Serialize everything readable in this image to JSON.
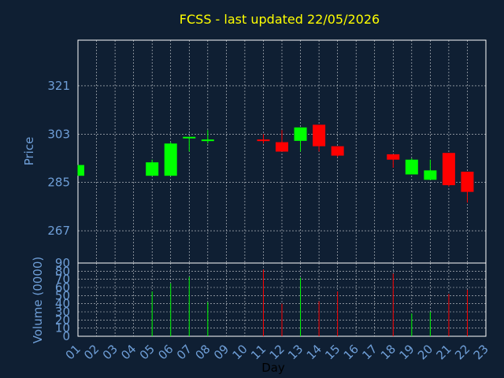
{
  "chart_data": {
    "type": "candlestick",
    "title": "FCSS - last updated 22/05/2026",
    "xlabel": "Day",
    "ylabel_price": "Price",
    "ylabel_volume": "Volume (0000)",
    "grid": true,
    "x_ticks": [
      "01",
      "02",
      "03",
      "04",
      "05",
      "06",
      "07",
      "08",
      "09",
      "10",
      "11",
      "12",
      "13",
      "14",
      "15",
      "16",
      "17",
      "18",
      "19",
      "20",
      "21",
      "22",
      "23"
    ],
    "price_ticks": [
      "267",
      "285",
      "303",
      "321"
    ],
    "volume_ticks": [
      "0",
      "10",
      "20",
      "30",
      "40",
      "50",
      "60",
      "70",
      "80",
      "90"
    ],
    "price_ylim": [
      255,
      338
    ],
    "volume_ylim": [
      0,
      90
    ],
    "colors": {
      "background": "#0f1f33",
      "title": "#ffff00",
      "axis_text": "#6f9fd8",
      "grid": "#ffffff",
      "up": "#00ff00",
      "down": "#ff0000"
    },
    "candles": [
      {
        "day": 1,
        "open": 287.5,
        "high": 291.5,
        "low": 287.5,
        "close": 291.5,
        "volume": 0
      },
      {
        "day": 5,
        "open": 287.5,
        "high": 293.5,
        "low": 287.5,
        "close": 292.5,
        "volume": 55
      },
      {
        "day": 6,
        "open": 287.5,
        "high": 300.0,
        "low": 287.5,
        "close": 299.5,
        "volume": 65
      },
      {
        "day": 7,
        "open": 301.5,
        "high": 302.0,
        "low": 296.5,
        "close": 302.0,
        "volume": 73
      },
      {
        "day": 8,
        "open": 300.5,
        "high": 304.5,
        "low": 299.5,
        "close": 301.0,
        "volume": 42
      },
      {
        "day": 11,
        "open": 301.0,
        "high": 303.0,
        "low": 299.5,
        "close": 300.5,
        "volume": 82
      },
      {
        "day": 12,
        "open": 300.0,
        "high": 304.5,
        "low": 296.5,
        "close": 296.5,
        "volume": 40
      },
      {
        "day": 13,
        "open": 300.5,
        "high": 305.5,
        "low": 296.5,
        "close": 305.5,
        "volume": 72
      },
      {
        "day": 14,
        "open": 306.5,
        "high": 306.5,
        "low": 296.5,
        "close": 298.5,
        "volume": 43
      },
      {
        "day": 15,
        "open": 298.5,
        "high": 298.5,
        "low": 294.5,
        "close": 295.0,
        "volume": 55
      },
      {
        "day": 18,
        "open": 295.5,
        "high": 295.5,
        "low": 290.5,
        "close": 293.5,
        "volume": 77
      },
      {
        "day": 19,
        "open": 288.0,
        "high": 294.0,
        "low": 288.0,
        "close": 293.5,
        "volume": 28
      },
      {
        "day": 20,
        "open": 286.0,
        "high": 293.5,
        "low": 286.0,
        "close": 289.5,
        "volume": 30
      },
      {
        "day": 21,
        "open": 296.0,
        "high": 296.0,
        "low": 283.5,
        "close": 284.0,
        "volume": 52
      },
      {
        "day": 22,
        "open": 289.0,
        "high": 289.0,
        "low": 277.5,
        "close": 281.5,
        "volume": 57
      }
    ]
  }
}
